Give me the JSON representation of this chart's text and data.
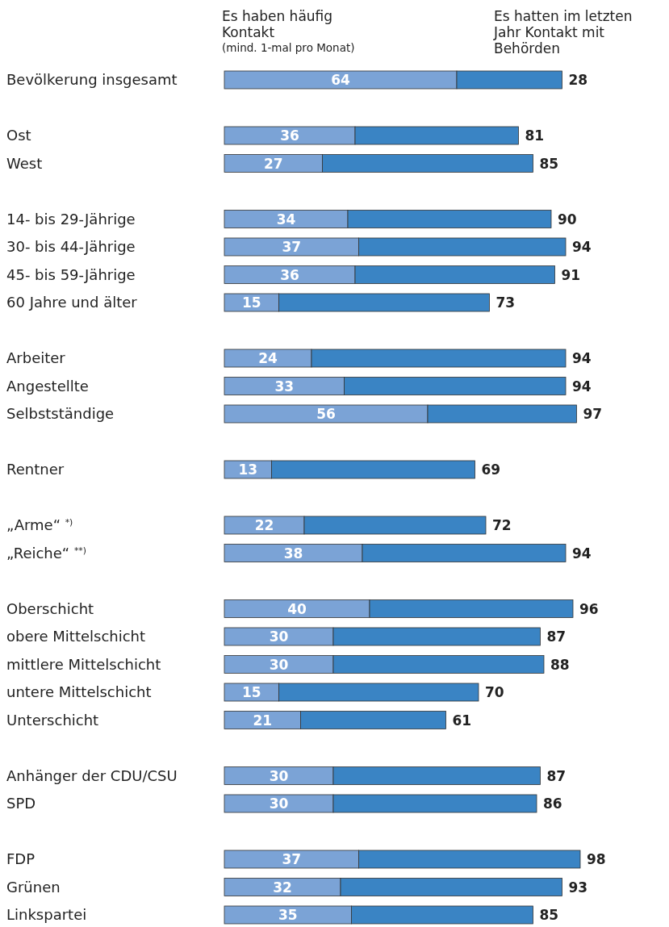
{
  "chart_data": {
    "type": "bar",
    "orientation": "horizontal",
    "stacked": true,
    "annotations": [
      "Es haben häufig Kontakt",
      "(mind. 1-mal pro Monat)",
      "Es hatten im letzten Jahr Kontakt mit Behörden",
      {
        "text": "28",
        "x": 93,
        "y": "Bevölkerung insgesamt"
      }
    ],
    "categories": [
      "Bevölkerung insgesamt",
      null,
      "Ost",
      "West",
      null,
      "14- bis 29-Jährige",
      "30- bis 44-Jährige",
      "45- bis 59-Jährige",
      "60 Jahre und älter",
      null,
      "Arbeiter",
      "Angestellte",
      "Selbstständige",
      null,
      "Rentner",
      null,
      "„Arme“ $^{*)}$",
      "„Reiche“ $^{**)}$",
      null,
      "Oberschicht",
      "obere Mittelschicht",
      "mittlere Mittelschicht",
      "untere Mittelschicht",
      "Unterschicht",
      null,
      "Anhänger der CDU/CSU",
      "SPD",
      null,
      "FDP",
      "Grünen",
      "Linkspartei"
    ],
    "series": [
      {
        "color": "#7ba3d6",
        "values": [
          64,
          null,
          36,
          27,
          null,
          34,
          37,
          36,
          15,
          null,
          24,
          33,
          56,
          null,
          13,
          null,
          22,
          38,
          null,
          40,
          30,
          30,
          15,
          21,
          null,
          30,
          30,
          null,
          37,
          32,
          35
        ],
        "value_labels": [
          "64",
          null,
          "36",
          "27",
          null,
          "34",
          "37",
          "36",
          "15",
          null,
          "24",
          "33",
          "56",
          null,
          "13",
          null,
          "22",
          "38",
          null,
          "40",
          "30",
          "30",
          "15",
          "21",
          null,
          "30",
          "30",
          null,
          "37",
          "32",
          "35"
        ]
      },
      {
        "color": "#3a84c4",
        "values": [
          29,
          null,
          45,
          58,
          null,
          56,
          57,
          55,
          58,
          null,
          70,
          61,
          41,
          null,
          56,
          null,
          50,
          56,
          null,
          56,
          57,
          58,
          55,
          40,
          null,
          57,
          56,
          null,
          61,
          61,
          50
        ]
      }
    ],
    "totals": [
      null,
      null,
      "81",
      "85",
      null,
      "90",
      "94",
      "91",
      "73",
      null,
      "94",
      "94",
      "97",
      null,
      "69",
      null,
      "72",
      "94",
      null,
      "96",
      "87",
      "88",
      "70",
      "61",
      null,
      "87",
      "86",
      null,
      "98",
      "93",
      "85"
    ]
  }
}
